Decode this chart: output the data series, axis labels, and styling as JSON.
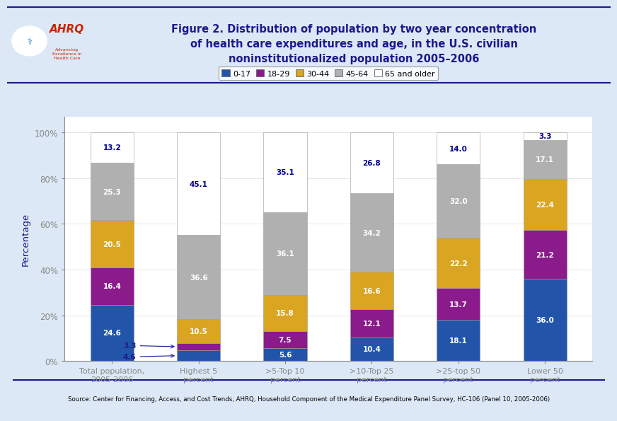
{
  "categories": [
    "Total population,\n2005-2006",
    "Highest 5\npercent",
    ">5-Top 10\npercent",
    ">10-Top 25\npercent",
    ">25-top 50\npercent",
    "Lower 50\npercent"
  ],
  "age_groups": [
    "0-17",
    "18-29",
    "30-44",
    "45-64",
    "65 and older"
  ],
  "bar_colors": [
    "#2255aa",
    "#8b1a8b",
    "#daa520",
    "#b0b0b0",
    "#ffffff"
  ],
  "bar_edge_color": "#999999",
  "data": {
    "0-17": [
      24.6,
      4.6,
      5.6,
      10.4,
      18.1,
      36.0
    ],
    "18-29": [
      16.4,
      3.3,
      7.5,
      12.1,
      13.7,
      21.2
    ],
    "30-44": [
      20.5,
      10.5,
      15.8,
      16.6,
      22.2,
      22.4
    ],
    "45-64": [
      25.3,
      36.6,
      36.1,
      34.2,
      32.0,
      17.1
    ],
    "65 and older": [
      13.2,
      45.1,
      35.1,
      26.8,
      14.0,
      3.3
    ]
  },
  "title": "Figure 2. Distribution of population by two year concentration\nof health care expenditures and age, in the U.S. civilian\nnoninstitutionalized population 2005–2006",
  "ylabel": "Percentage",
  "source": "Source: Center for Financing, Access, and Cost Trends, AHRQ, Household Component of the Medical Expenditure Panel Survey, HC-106 (Panel 10, 2005-2006)",
  "yticks": [
    0,
    20,
    40,
    60,
    80,
    100
  ],
  "ytick_labels": [
    "0%",
    "20%",
    "40%",
    "60%",
    "80%",
    "100%"
  ],
  "dark_blue": "#1a1a8c",
  "outer_bg": "#dce8f5",
  "header_bg": "#ffffff",
  "plot_bg": "#ffffff",
  "label_color_white": "#ffffff",
  "label_color_dark": "#00008B",
  "bar_width": 0.5
}
